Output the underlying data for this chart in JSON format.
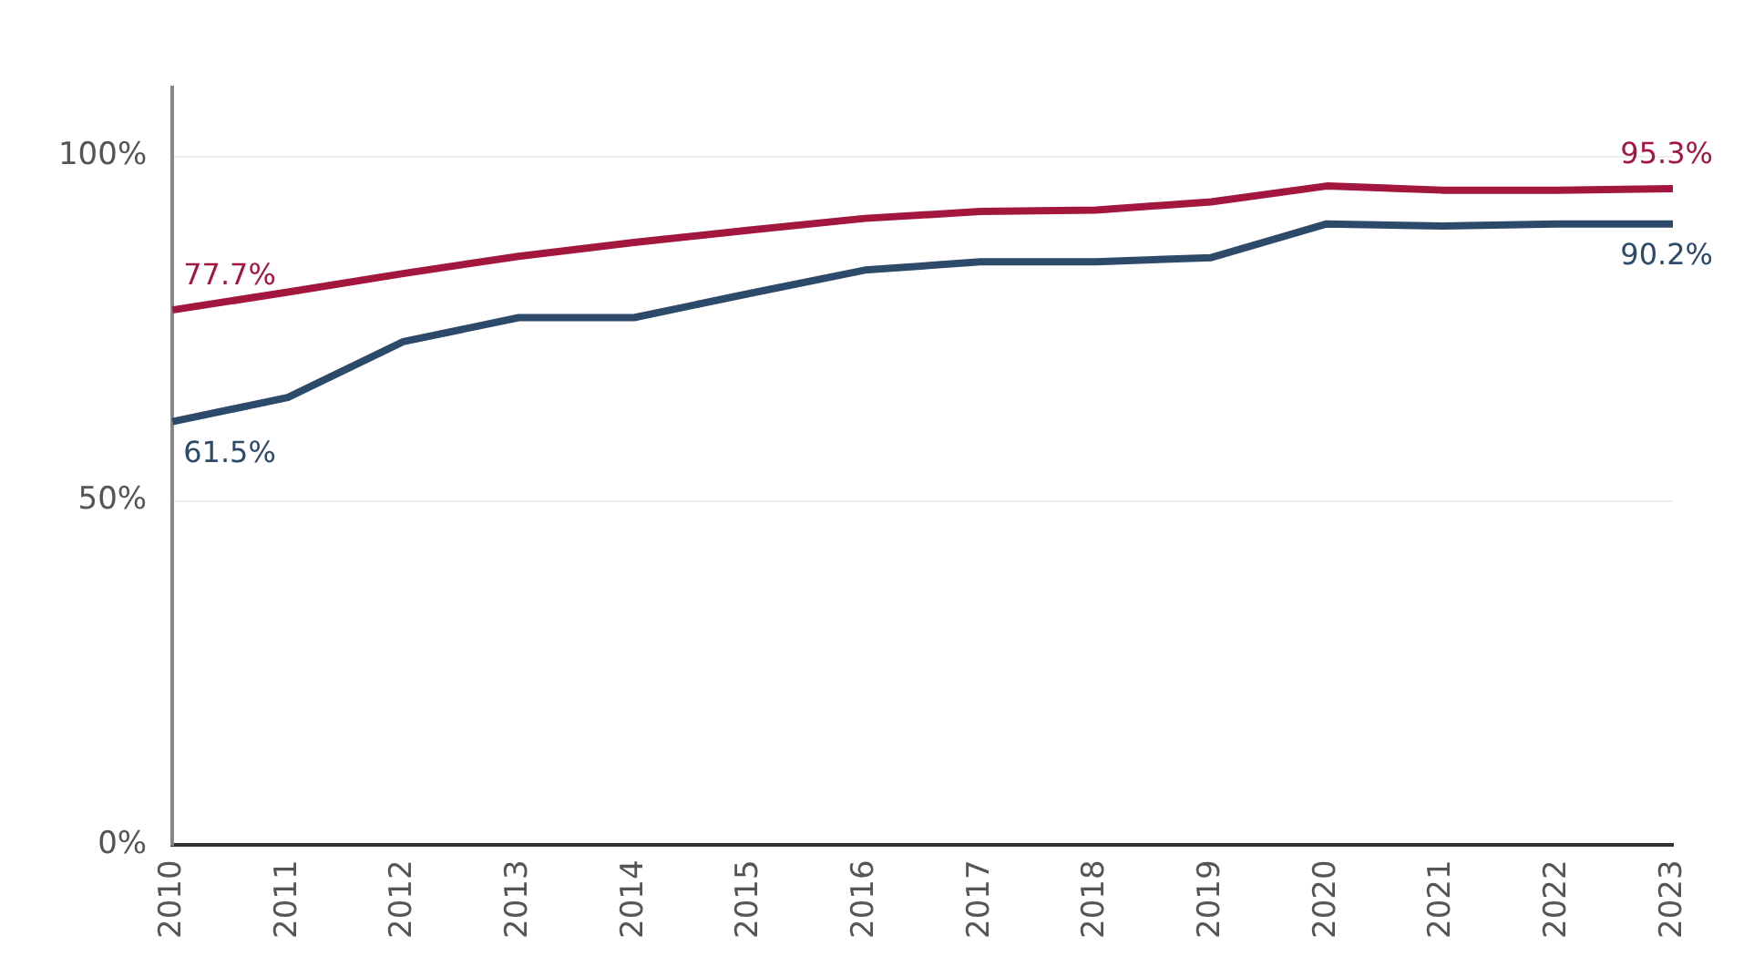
{
  "chart_data": {
    "type": "line",
    "categories": [
      "2010",
      "2011",
      "2012",
      "2013",
      "2014",
      "2015",
      "2016",
      "2017",
      "2018",
      "2019",
      "2020",
      "2021",
      "2022",
      "2023"
    ],
    "series": [
      {
        "color": "#a3173f",
        "values": [
          77.7,
          80.3,
          83,
          85.5,
          87.5,
          89.3,
          91,
          92,
          92.2,
          93.4,
          95.7,
          95.1,
          95.1,
          95.3
        ],
        "value_labels": [
          "77.7%",
          null,
          null,
          null,
          null,
          null,
          null,
          null,
          null,
          null,
          null,
          null,
          null,
          "95.3%"
        ]
      },
      {
        "color": "#2d4a6b",
        "values": [
          61.5,
          65,
          73.1,
          76.6,
          76.6,
          80.1,
          83.5,
          84.7,
          84.7,
          85.3,
          90.2,
          89.9,
          90.2,
          90.2
        ],
        "value_labels": [
          "61.5%",
          null,
          null,
          null,
          null,
          null,
          null,
          null,
          null,
          null,
          null,
          null,
          null,
          "90.2%"
        ]
      }
    ],
    "ylim": [
      0,
      110
    ],
    "yticks": [
      {
        "value": 0,
        "label": "0%"
      },
      {
        "value": 50,
        "label": "50%"
      },
      {
        "value": 100,
        "label": "100%"
      }
    ],
    "grid": "y",
    "marker": "none",
    "line_style": "solid",
    "legend": false
  }
}
